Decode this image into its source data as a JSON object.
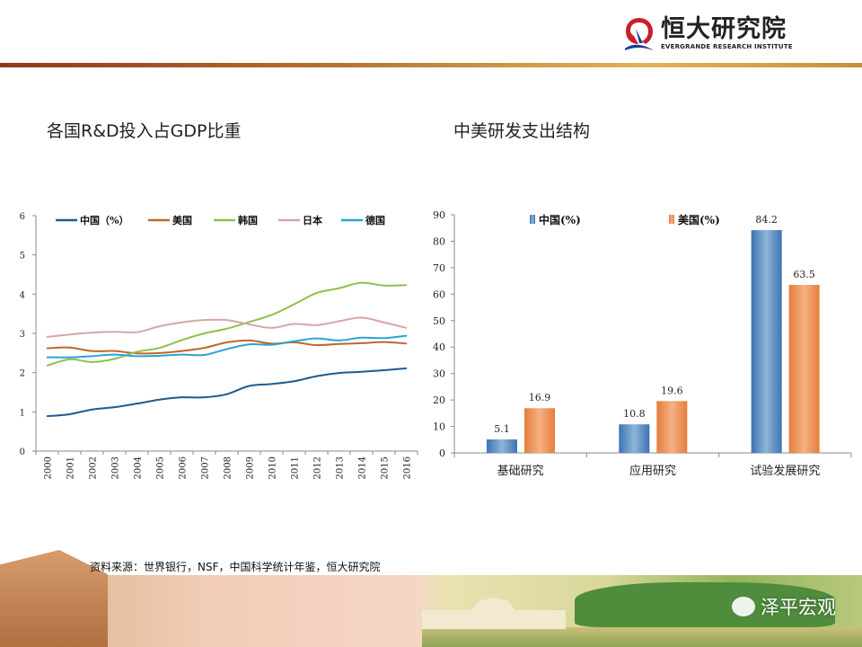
{
  "header": {
    "logo_cn": "恒大研究院",
    "logo_en": "EVERGRANDE RESEARCH INSTITUTE"
  },
  "titles": {
    "left": "各国R&D投入占GDP比重",
    "right": "中美研发支出结构"
  },
  "source": "资料来源：世界银行，NSF，中国科学统计年鉴，恒大研究院",
  "watermark": "泽平宏观",
  "colors": {
    "china": "#1f5b8e",
    "usa": "#c0662a",
    "korea": "#8fc04c",
    "japan": "#d9a5a5",
    "germany": "#2aa3d4",
    "bar_china": "#3b74b4",
    "bar_usa": "#e57e3a"
  },
  "chart_data": [
    {
      "type": "line",
      "title": "",
      "x": [
        2000,
        2001,
        2002,
        2003,
        2004,
        2005,
        2006,
        2007,
        2008,
        2009,
        2010,
        2011,
        2012,
        2013,
        2014,
        2015,
        2016
      ],
      "ylim": [
        0,
        6
      ],
      "yticks": [
        0,
        1,
        2,
        3,
        4,
        5,
        6
      ],
      "legend": "top",
      "grid": false,
      "series": [
        {
          "name": "中国（%）",
          "key": "china",
          "values": [
            0.89,
            0.94,
            1.06,
            1.12,
            1.21,
            1.31,
            1.37,
            1.37,
            1.45,
            1.66,
            1.71,
            1.78,
            1.91,
            1.99,
            2.02,
            2.06,
            2.11
          ]
        },
        {
          "name": "美国",
          "key": "usa",
          "values": [
            2.62,
            2.64,
            2.55,
            2.55,
            2.49,
            2.5,
            2.55,
            2.63,
            2.77,
            2.82,
            2.74,
            2.77,
            2.7,
            2.73,
            2.75,
            2.78,
            2.74
          ]
        },
        {
          "name": "韩国",
          "key": "korea",
          "values": [
            2.18,
            2.34,
            2.27,
            2.35,
            2.53,
            2.63,
            2.83,
            3.0,
            3.12,
            3.29,
            3.47,
            3.74,
            4.03,
            4.15,
            4.29,
            4.22,
            4.23
          ]
        },
        {
          "name": "日本",
          "key": "japan",
          "values": [
            2.91,
            2.97,
            3.02,
            3.04,
            3.03,
            3.18,
            3.28,
            3.34,
            3.34,
            3.23,
            3.14,
            3.24,
            3.21,
            3.31,
            3.4,
            3.28,
            3.14
          ]
        },
        {
          "name": "德国",
          "key": "germany",
          "values": [
            2.39,
            2.39,
            2.42,
            2.46,
            2.42,
            2.43,
            2.46,
            2.45,
            2.6,
            2.72,
            2.71,
            2.8,
            2.87,
            2.82,
            2.89,
            2.88,
            2.94
          ]
        }
      ]
    },
    {
      "type": "bar",
      "title": "",
      "categories": [
        "基础研究",
        "应用研究",
        "试验发展研究"
      ],
      "ylim": [
        0,
        90
      ],
      "yticks": [
        0,
        10,
        20,
        30,
        40,
        50,
        60,
        70,
        80,
        90
      ],
      "legend": "top",
      "series": [
        {
          "name": "中国(%)",
          "key": "bar_china",
          "values": [
            5.1,
            10.8,
            84.2
          ]
        },
        {
          "name": "美国(%)",
          "key": "bar_usa",
          "values": [
            16.9,
            19.6,
            63.5
          ]
        }
      ]
    }
  ]
}
